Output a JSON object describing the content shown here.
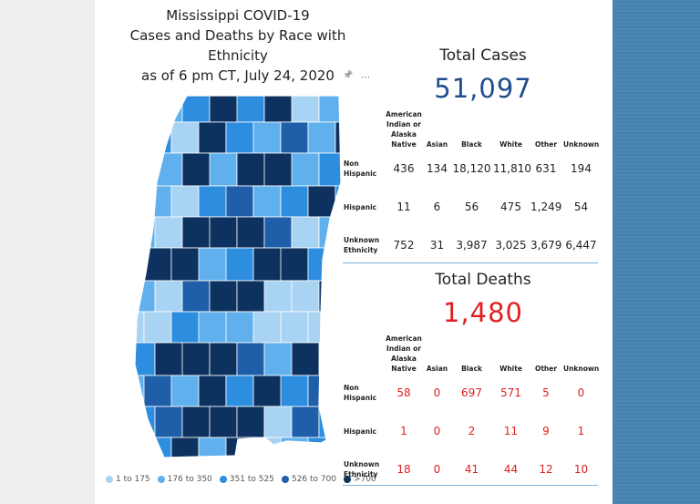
{
  "title": {
    "line1": "Mississippi COVID-19",
    "line2": "Cases and Deaths by Race with Ethnicity",
    "line3": "as of 6 pm CT, July 24, 2020"
  },
  "icons": {
    "pin": "pin-icon",
    "more": "more-options-icon"
  },
  "toolbar": {
    "pin_glyph": "📌",
    "more_glyph": "⋯"
  },
  "colors": {
    "card": "#ffffff",
    "band": "#4680ad",
    "cases_total": "#1f4e8c",
    "deaths": "#e02020",
    "legend": [
      "#a9d3f3",
      "#61b0ee",
      "#2d8ee0",
      "#1f5ea8",
      "#0e3260"
    ]
  },
  "legend": [
    {
      "label": "1 to 175"
    },
    {
      "label": "176 to 350"
    },
    {
      "label": "351 to 525"
    },
    {
      "label": "526 to 700"
    },
    {
      "label": ">700"
    }
  ],
  "cases": {
    "title": "Total Cases",
    "total": "51,097",
    "headers": [
      "American Indian or Alaska Native",
      "Asian",
      "Black",
      "White",
      "Other",
      "Unknown"
    ],
    "rows": [
      {
        "label": "Non Hispanic",
        "values": [
          "436",
          "134",
          "18,120",
          "11,810",
          "631",
          "194"
        ]
      },
      {
        "label": "Hispanic",
        "values": [
          "11",
          "6",
          "56",
          "475",
          "1,249",
          "54"
        ]
      },
      {
        "label": "Unknown Ethnicity",
        "values": [
          "752",
          "31",
          "3,987",
          "3,025",
          "3,679",
          "6,447"
        ]
      }
    ]
  },
  "deaths": {
    "title": "Total Deaths",
    "total": "1,480",
    "headers": [
      "American Indian or Alaska Native",
      "Asian",
      "Black",
      "White",
      "Other",
      "Unknown"
    ],
    "rows": [
      {
        "label": "Non Hispanic",
        "values": [
          "58",
          "0",
          "697",
          "571",
          "5",
          "0"
        ]
      },
      {
        "label": "Hispanic",
        "values": [
          "1",
          "0",
          "2",
          "11",
          "9",
          "1"
        ]
      },
      {
        "label": "Unknown Ethnicity",
        "values": [
          "18",
          "0",
          "41",
          "44",
          "12",
          "10"
        ]
      }
    ]
  },
  "chart_data": [
    {
      "type": "table",
      "title": "Total Cases",
      "total": 51097,
      "columns": [
        "American Indian or Alaska Native",
        "Asian",
        "Black",
        "White",
        "Other",
        "Unknown"
      ],
      "rows": [
        "Non Hispanic",
        "Hispanic",
        "Unknown Ethnicity"
      ],
      "values": [
        [
          436,
          134,
          18120,
          11810,
          631,
          194
        ],
        [
          11,
          6,
          56,
          475,
          1249,
          54
        ],
        [
          752,
          31,
          3987,
          3025,
          3679,
          6447
        ]
      ]
    },
    {
      "type": "table",
      "title": "Total Deaths",
      "total": 1480,
      "columns": [
        "American Indian or Alaska Native",
        "Asian",
        "Black",
        "White",
        "Other",
        "Unknown"
      ],
      "rows": [
        "Non Hispanic",
        "Hispanic",
        "Unknown Ethnicity"
      ],
      "values": [
        [
          58,
          0,
          697,
          571,
          5,
          0
        ],
        [
          1,
          0,
          2,
          11,
          9,
          1
        ],
        [
          18,
          0,
          41,
          44,
          12,
          10
        ]
      ]
    },
    {
      "type": "heatmap",
      "legend": [
        "1 to 175",
        "176 to 350",
        "351 to 525",
        "526 to 700",
        ">700"
      ]
    }
  ]
}
